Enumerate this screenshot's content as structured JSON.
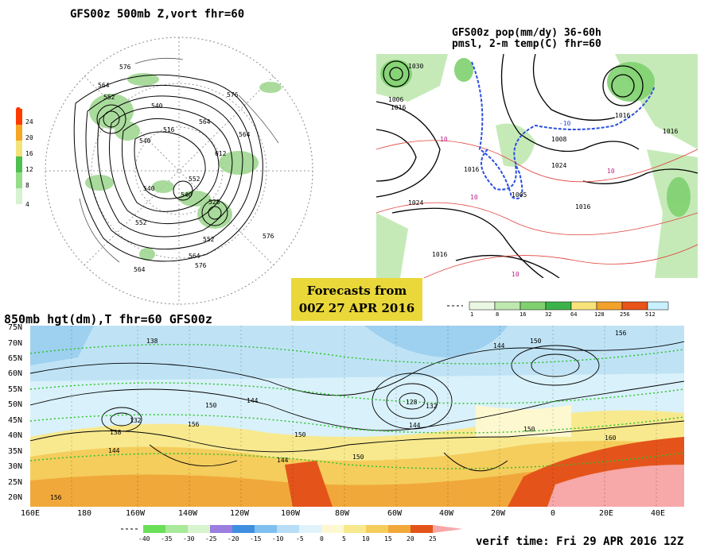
{
  "panel_500mb": {
    "title": "GFS00z  500mb Z,vort   fhr=60",
    "contour_labels": [
      "576",
      "564",
      "552",
      "540",
      "528",
      "516",
      "540",
      "552",
      "564",
      "576",
      "576",
      "564",
      "612",
      "552",
      "540",
      "612",
      "552",
      "564",
      "552",
      "576",
      "528",
      "540",
      "552",
      "576",
      "564"
    ],
    "colorbar": {
      "ticks": [
        "24",
        "20",
        "16",
        "12",
        "8",
        "4"
      ],
      "colors": [
        "#ff3a00",
        "#f5a623",
        "#f3e27a",
        "#4fbf4f",
        "#96dd8a",
        "#d6f2d0"
      ]
    }
  },
  "panel_pop": {
    "title_line1": "GFS00z pop(mm/dy) 36-60h",
    "title_line2": "pmsl, 2-m temp(C)  fhr=60",
    "pressure_labels": [
      "1030",
      "1006",
      "1016",
      "1016",
      "1024",
      "1016",
      "1024",
      "1016",
      "1016",
      "1016",
      "1016",
      "1008",
      "1016"
    ],
    "temp_labels": [
      "10",
      "10",
      "-10",
      "10",
      "10",
      "10",
      "10"
    ],
    "colorbar": {
      "ticks": [
        "1",
        "8",
        "16",
        "32",
        "64",
        "128",
        "256",
        "512"
      ],
      "colors": [
        "#eaf7e2",
        "#bfe8b0",
        "#7fd16f",
        "#3cb34a",
        "#f8e27a",
        "#f2a12a",
        "#e8541a",
        "#c8f0ff"
      ]
    }
  },
  "banner": {
    "line1": "Forecasts from",
    "line2": "00Z 27 APR 2016"
  },
  "panel_850mb": {
    "title": "850mb hgt(dm),T  fhr=60 GFS00z",
    "lat_labels": [
      "75N",
      "70N",
      "65N",
      "60N",
      "55N",
      "50N",
      "45N",
      "40N",
      "35N",
      "30N",
      "25N",
      "20N"
    ],
    "lon_labels": [
      "160E",
      "180",
      "160W",
      "140W",
      "120W",
      "100W",
      "80W",
      "60W",
      "40W",
      "20W",
      "0",
      "20E",
      "40E"
    ],
    "height_labels": [
      "138",
      "132",
      "144",
      "150",
      "156",
      "144",
      "150",
      "128",
      "132",
      "144",
      "150",
      "156",
      "144",
      "150",
      "156",
      "150",
      "144",
      "156",
      "138",
      "144",
      "150",
      "160"
    ],
    "colorbar": {
      "ticks": [
        "-40",
        "-35",
        "-30",
        "-25",
        "-20",
        "-15",
        "-10",
        "-5",
        "0",
        "5",
        "10",
        "15",
        "20",
        "25"
      ],
      "colors": [
        "#6adf5a",
        "#a8e99a",
        "#d8f4cf",
        "#9a7ee0",
        "#3f8fe0",
        "#7fbfef",
        "#b8def7",
        "#e0f3fb",
        "#fdf8d0",
        "#f8e98f",
        "#f4cd5c",
        "#f1a83a",
        "#e4541a",
        "#f7a8a8"
      ]
    }
  },
  "footer": {
    "verif": "verif time: Fri 29 APR 2016 12Z"
  }
}
